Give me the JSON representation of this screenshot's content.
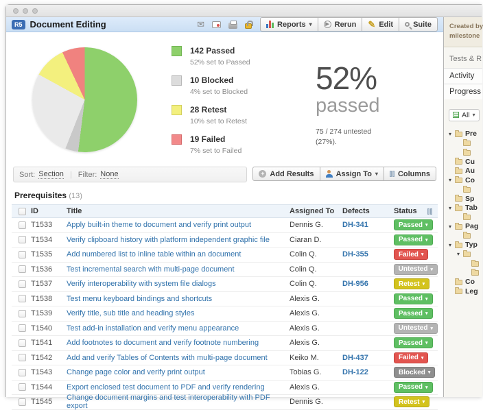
{
  "window": {
    "badge": "R5",
    "title": "Document Editing"
  },
  "header": {
    "icons": [
      "email-icon",
      "subscribe-icon",
      "print-icon",
      "lock-icon"
    ],
    "buttons": {
      "reports": "Reports",
      "rerun": "Rerun",
      "edit": "Edit",
      "suite": "Suite"
    }
  },
  "chart_data": {
    "type": "pie",
    "total_label": "75 / 274 untested (27%).",
    "slices": [
      {
        "label": "Passed",
        "value": 142,
        "percent": 52,
        "color": "#8ed06b"
      },
      {
        "label": "Blocked",
        "value": 10,
        "percent": 4,
        "color": "#c9c9c9"
      },
      {
        "label": "Untested",
        "value": 75,
        "percent": 27,
        "color": "#eaeaea"
      },
      {
        "label": "Retest",
        "value": 28,
        "percent": 10,
        "color": "#f3f07e"
      },
      {
        "label": "Failed",
        "value": 19,
        "percent": 7,
        "color": "#f0827f"
      }
    ]
  },
  "summary": {
    "legend": [
      {
        "count": "142",
        "label": "Passed",
        "sub": "52% set to Passed",
        "color": "#8ed06b",
        "border": "#72b554"
      },
      {
        "count": "10",
        "label": "Blocked",
        "sub": "4% set to Blocked",
        "color": "#dcdcdc",
        "border": "#b8b8b8"
      },
      {
        "count": "28",
        "label": "Retest",
        "sub": "10% set to Retest",
        "color": "#f3f07e",
        "border": "#d2cf5c"
      },
      {
        "count": "19",
        "label": "Failed",
        "sub": "7% set to Failed",
        "color": "#f2898a",
        "border": "#d66b6c"
      }
    ],
    "stat": {
      "big": "52%",
      "word": "passed",
      "note_line1": "75 / 274 untested",
      "note_line2": "(27%)."
    }
  },
  "toolbar": {
    "sort_label": "Sort:",
    "sort_value": "Section",
    "filter_label": "Filter:",
    "filter_value": "None",
    "add_results": "Add Results",
    "assign_to": "Assign To",
    "columns": "Columns"
  },
  "table": {
    "section_title": "Prerequisites",
    "section_count": "(13)",
    "headers": {
      "id": "ID",
      "title": "Title",
      "assigned": "Assigned To",
      "defects": "Defects",
      "status": "Status"
    },
    "rows": [
      {
        "id": "T1533",
        "title": "Apply built-in theme to document and verify print output",
        "assigned": "Dennis G.",
        "defects": "DH-341",
        "status": "Passed"
      },
      {
        "id": "T1534",
        "title": "Verify clipboard history with platform independent graphic file",
        "assigned": "Ciaran D.",
        "defects": "",
        "status": "Passed"
      },
      {
        "id": "T1535",
        "title": "Add numbered list to inline table within an document",
        "assigned": "Colin Q.",
        "defects": "DH-355",
        "status": "Failed"
      },
      {
        "id": "T1536",
        "title": "Test incremental search with multi-page document",
        "assigned": "Colin Q.",
        "defects": "",
        "status": "Untested"
      },
      {
        "id": "T1537",
        "title": "Verify interoperability with system file dialogs",
        "assigned": "Colin Q.",
        "defects": "DH-956",
        "status": "Retest"
      },
      {
        "id": "T1538",
        "title": "Test menu keyboard bindings and shortcuts",
        "assigned": "Alexis G.",
        "defects": "",
        "status": "Passed"
      },
      {
        "id": "T1539",
        "title": "Verify title, sub title and heading styles",
        "assigned": "Alexis G.",
        "defects": "",
        "status": "Passed"
      },
      {
        "id": "T1540",
        "title": "Test add-in installation and verify menu appearance",
        "assigned": "Alexis G.",
        "defects": "",
        "status": "Untested"
      },
      {
        "id": "T1541",
        "title": "Add footnotes to document and verify footnote numbering",
        "assigned": "Alexis G.",
        "defects": "",
        "status": "Passed"
      },
      {
        "id": "T1542",
        "title": "Add and verify Tables of Contents with multi-page document",
        "assigned": "Keiko M.",
        "defects": "DH-437",
        "status": "Failed"
      },
      {
        "id": "T1543",
        "title": "Change page color and verify print output",
        "assigned": "Tobias G.",
        "defects": "DH-122",
        "status": "Blocked"
      },
      {
        "id": "T1544",
        "title": "Export enclosed test document to PDF and verify rendering",
        "assigned": "Alexis G.",
        "defects": "",
        "status": "Passed"
      },
      {
        "id": "T1545",
        "title": "Change document margins and test interoperability with PDF export",
        "assigned": "Dennis G.",
        "defects": "",
        "status": "Retest"
      }
    ]
  },
  "status_styles": {
    "Passed": {
      "bg": "#5fbf63",
      "border": "#4daa51"
    },
    "Failed": {
      "bg": "#e25550",
      "border": "#c9423d"
    },
    "Untested": {
      "bg": "#b4b4b4",
      "border": "#a2a2a2"
    },
    "Retest": {
      "bg": "#d3c31e",
      "border": "#b8a918"
    },
    "Blocked": {
      "bg": "#8f8f8f",
      "border": "#7c7c7c"
    }
  },
  "sidebar": {
    "created_line1": "Created by",
    "created_line2": "milestone",
    "section_label": "Tests & R",
    "tabs": [
      "Activity",
      "Progress"
    ],
    "filter_value": "All",
    "tree": [
      {
        "label": "Pre",
        "level": 0,
        "arrow": true
      },
      {
        "label": "",
        "level": 1,
        "arrow": false
      },
      {
        "label": "",
        "level": 1,
        "arrow": false
      },
      {
        "label": "Cu",
        "level": 0,
        "arrow": false
      },
      {
        "label": "Au",
        "level": 0,
        "arrow": false
      },
      {
        "label": "Co",
        "level": 0,
        "arrow": true
      },
      {
        "label": "",
        "level": 1,
        "arrow": false
      },
      {
        "label": "Sp",
        "level": 0,
        "arrow": false
      },
      {
        "label": "Tab",
        "level": 0,
        "arrow": true
      },
      {
        "label": "",
        "level": 1,
        "arrow": false
      },
      {
        "label": "Pag",
        "level": 0,
        "arrow": true
      },
      {
        "label": "",
        "level": 1,
        "arrow": false
      },
      {
        "label": "Typ",
        "level": 0,
        "arrow": true
      },
      {
        "label": "",
        "level": 1,
        "arrow": true
      },
      {
        "label": "",
        "level": 2,
        "arrow": false
      },
      {
        "label": "",
        "level": 2,
        "arrow": false
      },
      {
        "label": "Co",
        "level": 0,
        "arrow": false
      },
      {
        "label": "Leg",
        "level": 0,
        "arrow": false
      }
    ]
  }
}
